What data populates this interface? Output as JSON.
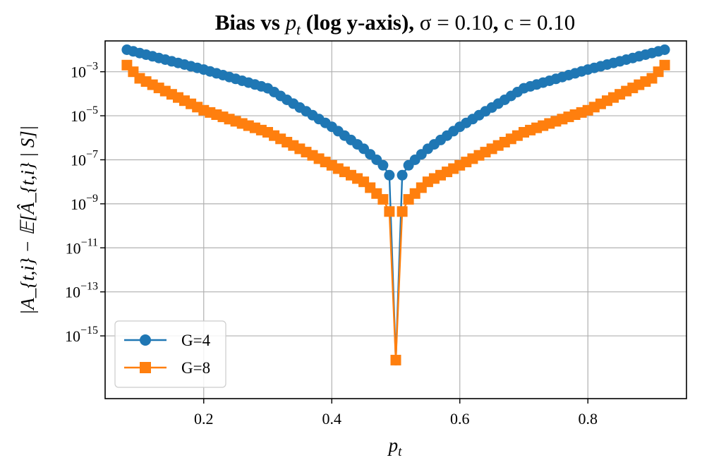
{
  "chart_data": {
    "type": "line",
    "title": {
      "prefix": "Bias vs ",
      "p": "p",
      "sub": "t",
      "middle": " (log y-axis), ",
      "sigma_expr": "σ = 0.10",
      "sep": ", ",
      "c_expr": "c = 0.10"
    },
    "xlabel": {
      "p": "p",
      "sub": "t"
    },
    "ylabel": "|A_{t,i} − 𝔼[Â_{t,i} | S]|",
    "yscale": "log",
    "xlim": [
      0.046,
      0.954
    ],
    "ylog_lim": [
      -17.85,
      -1.6
    ],
    "xticks": [
      {
        "value": 0.2,
        "label": "0.2"
      },
      {
        "value": 0.4,
        "label": "0.4"
      },
      {
        "value": 0.6,
        "label": "0.6"
      },
      {
        "value": 0.8,
        "label": "0.8"
      }
    ],
    "yticks": [
      {
        "exp": -3,
        "base": "10",
        "sup": "−3"
      },
      {
        "exp": -5,
        "base": "10",
        "sup": "−5"
      },
      {
        "exp": -7,
        "base": "10",
        "sup": "−7"
      },
      {
        "exp": -9,
        "base": "10",
        "sup": "−9"
      },
      {
        "exp": -11,
        "base": "10",
        "sup": "−11"
      },
      {
        "exp": -13,
        "base": "10",
        "sup": "−13"
      },
      {
        "exp": -15,
        "base": "10",
        "sup": "−15"
      }
    ],
    "grid": true,
    "legend": {
      "position": "lower-left"
    },
    "x": {
      "start": 0.08,
      "end": 0.92,
      "step": 0.01
    },
    "series": [
      {
        "name": "G=4",
        "color": "#1f77b4",
        "marker": "circle",
        "anchors_log10": [
          [
            0.08,
            -2.0
          ],
          [
            0.2,
            -2.9
          ],
          [
            0.3,
            -3.75
          ],
          [
            0.4,
            -5.5
          ],
          [
            0.45,
            -6.5
          ],
          [
            0.48,
            -7.25
          ],
          [
            0.49,
            -7.7
          ],
          [
            0.5,
            -16.1
          ],
          [
            0.51,
            -7.7
          ],
          [
            0.52,
            -7.25
          ],
          [
            0.55,
            -6.5
          ],
          [
            0.6,
            -5.5
          ],
          [
            0.7,
            -3.75
          ],
          [
            0.8,
            -2.9
          ],
          [
            0.92,
            -2.0
          ]
        ]
      },
      {
        "name": "G=8",
        "color": "#ff7f0e",
        "marker": "square",
        "anchors_log10": [
          [
            0.08,
            -2.7
          ],
          [
            0.1,
            -3.3
          ],
          [
            0.2,
            -4.75
          ],
          [
            0.3,
            -5.75
          ],
          [
            0.4,
            -7.25
          ],
          [
            0.45,
            -8.0
          ],
          [
            0.48,
            -8.8
          ],
          [
            0.49,
            -9.35
          ],
          [
            0.5,
            -16.1
          ],
          [
            0.51,
            -9.35
          ],
          [
            0.52,
            -8.8
          ],
          [
            0.55,
            -8.0
          ],
          [
            0.6,
            -7.25
          ],
          [
            0.7,
            -5.75
          ],
          [
            0.8,
            -4.75
          ],
          [
            0.9,
            -3.3
          ],
          [
            0.92,
            -2.7
          ]
        ]
      }
    ]
  }
}
